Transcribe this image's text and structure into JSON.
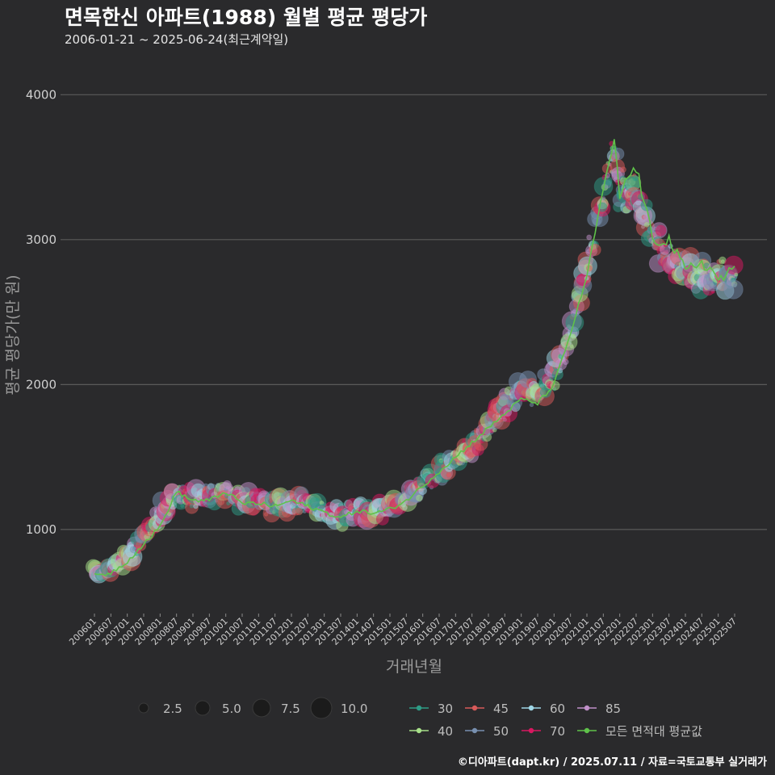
{
  "header": {
    "title": "면목한신 아파트(1988) 월별 평균 평당가",
    "subtitle": "2006-01-21 ~ 2025-06-24(최근계약일)"
  },
  "caption": "©디아파트(dapt.kr) / 2025.07.11 / 자료=국토교통부 실거래가",
  "colors": {
    "background": "#2a2a2c",
    "grid": "#5a5a5a",
    "avg_line": "#5fc24a",
    "s30": "#2e9c86",
    "s40": "#a8e08a",
    "s45": "#d85a5a",
    "s50": "#7890b0",
    "s60": "#9fd6e6",
    "s70": "#d81860",
    "s85": "#c090c8"
  },
  "chart_data": {
    "type": "scatter",
    "title": "면목한신 아파트(1988) 월별 평균 평당가",
    "xlabel": "거래년월",
    "ylabel": "평균 평당가(만 원)",
    "ylim": [
      420,
      4180
    ],
    "yticks": [
      1000,
      2000,
      3000,
      4000
    ],
    "grid": true,
    "x_range": [
      "200601",
      "202507"
    ],
    "x_ticks": [
      "200601",
      "200607",
      "200701",
      "200707",
      "200801",
      "200807",
      "200901",
      "200907",
      "201001",
      "201007",
      "201101",
      "201107",
      "201201",
      "201207",
      "201301",
      "201307",
      "201401",
      "201407",
      "201501",
      "201507",
      "201601",
      "201607",
      "201701",
      "201707",
      "201801",
      "201807",
      "201901",
      "201907",
      "202001",
      "202007",
      "202101",
      "202107",
      "202201",
      "202207",
      "202301",
      "202307",
      "202401",
      "202407",
      "202501",
      "202507"
    ],
    "size_legend": {
      "title": "",
      "values": [
        "2.5",
        "5.0",
        "7.5",
        "10.0"
      ]
    },
    "series_legend": [
      {
        "name": "30",
        "color_key": "s30"
      },
      {
        "name": "45",
        "color_key": "s45"
      },
      {
        "name": "60",
        "color_key": "s60"
      },
      {
        "name": "85",
        "color_key": "s85"
      },
      {
        "name": "40",
        "color_key": "s40"
      },
      {
        "name": "50",
        "color_key": "s50"
      },
      {
        "name": "70",
        "color_key": "s70"
      },
      {
        "name": "모든 면적대 평균값",
        "color_key": "avg_line"
      }
    ],
    "avg_series_anchors": [
      [
        "200601",
        680
      ],
      [
        "200607",
        700
      ],
      [
        "200701",
        780
      ],
      [
        "200707",
        900
      ],
      [
        "200801",
        1020
      ],
      [
        "200807",
        1260
      ],
      [
        "200901",
        1200
      ],
      [
        "200907",
        1200
      ],
      [
        "201001",
        1260
      ],
      [
        "201007",
        1180
      ],
      [
        "201101",
        1180
      ],
      [
        "201107",
        1160
      ],
      [
        "201201",
        1200
      ],
      [
        "201207",
        1160
      ],
      [
        "201301",
        1120
      ],
      [
        "201307",
        1080
      ],
      [
        "201401",
        1130
      ],
      [
        "201407",
        1110
      ],
      [
        "201501",
        1140
      ],
      [
        "201507",
        1200
      ],
      [
        "201601",
        1300
      ],
      [
        "201607",
        1400
      ],
      [
        "201701",
        1500
      ],
      [
        "201707",
        1600
      ],
      [
        "201801",
        1700
      ],
      [
        "201807",
        1800
      ],
      [
        "201901",
        1900
      ],
      [
        "201907",
        1870
      ],
      [
        "202001",
        2000
      ],
      [
        "202007",
        2350
      ],
      [
        "202101",
        2750
      ],
      [
        "202107",
        3350
      ],
      [
        "202111",
        3680
      ],
      [
        "202201",
        3300
      ],
      [
        "202204",
        3430
      ],
      [
        "202207",
        3500
      ],
      [
        "202301",
        3000
      ],
      [
        "202307",
        3000
      ],
      [
        "202401",
        2780
      ],
      [
        "202407",
        2850
      ],
      [
        "202501",
        2730
      ],
      [
        "202507",
        2780
      ]
    ],
    "scatter_trend": [
      [
        "200601",
        700
      ],
      [
        "200607",
        720
      ],
      [
        "200701",
        820
      ],
      [
        "200707",
        950
      ],
      [
        "200801",
        1100
      ],
      [
        "200807",
        1250
      ],
      [
        "200901",
        1220
      ],
      [
        "200907",
        1230
      ],
      [
        "201001",
        1260
      ],
      [
        "201007",
        1210
      ],
      [
        "201101",
        1190
      ],
      [
        "201107",
        1180
      ],
      [
        "201201",
        1190
      ],
      [
        "201207",
        1170
      ],
      [
        "201301",
        1120
      ],
      [
        "201307",
        1100
      ],
      [
        "201401",
        1130
      ],
      [
        "201407",
        1120
      ],
      [
        "201501",
        1150
      ],
      [
        "201507",
        1220
      ],
      [
        "201601",
        1310
      ],
      [
        "201607",
        1400
      ],
      [
        "201701",
        1480
      ],
      [
        "201707",
        1560
      ],
      [
        "201801",
        1700
      ],
      [
        "201807",
        1850
      ],
      [
        "201901",
        1950
      ],
      [
        "201907",
        1950
      ],
      [
        "202001",
        2050
      ],
      [
        "202007",
        2350
      ],
      [
        "202101",
        2800
      ],
      [
        "202107",
        3300
      ],
      [
        "202111",
        3600
      ],
      [
        "202201",
        3350
      ],
      [
        "202207",
        3300
      ],
      [
        "202301",
        3000
      ],
      [
        "202307",
        2900
      ],
      [
        "202401",
        2800
      ],
      [
        "202407",
        2750
      ],
      [
        "202501",
        2750
      ],
      [
        "202507",
        2750
      ]
    ]
  }
}
